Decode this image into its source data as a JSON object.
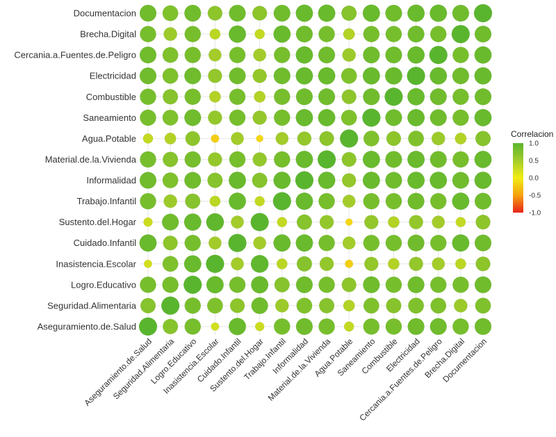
{
  "chart_data": {
    "type": "heatmap",
    "subtype": "correlation-circle-matrix",
    "variables": [
      "Aseguramiento.de.Salud",
      "Seguridad.Alimentaria",
      "Logro.Educativo",
      "Inasistencia.Escolar",
      "Cuidado.Infantil",
      "Sustento.del.Hogar",
      "Trabajo.Infantil",
      "Informalidad",
      "Material.de.la.Vivienda",
      "Agua.Potable",
      "Saneamiento",
      "Combustible",
      "Electricidad",
      "Cercania.a.Fuentes.de.Peligro",
      "Brecha.Digital",
      "Documentacion"
    ],
    "matrix": [
      [
        1.0,
        0.7,
        0.8,
        0.2,
        0.9,
        0.25,
        0.8,
        0.85,
        0.8,
        0.3,
        0.8,
        0.8,
        0.85,
        0.85,
        0.8,
        0.85
      ],
      [
        0.7,
        1.0,
        0.8,
        0.75,
        0.65,
        0.85,
        0.55,
        0.75,
        0.7,
        0.4,
        0.75,
        0.7,
        0.75,
        0.75,
        0.55,
        0.75
      ],
      [
        0.8,
        0.8,
        1.0,
        0.9,
        0.8,
        0.9,
        0.7,
        0.85,
        0.8,
        0.65,
        0.85,
        0.8,
        0.85,
        0.8,
        0.8,
        0.85
      ],
      [
        0.2,
        0.75,
        0.9,
        1.0,
        0.5,
        0.95,
        0.35,
        0.7,
        0.6,
        -0.2,
        0.6,
        0.4,
        0.6,
        0.5,
        0.35,
        0.65
      ],
      [
        0.9,
        0.65,
        0.8,
        0.5,
        1.0,
        0.5,
        0.9,
        0.9,
        0.8,
        0.5,
        0.8,
        0.8,
        0.85,
        0.8,
        0.9,
        0.85
      ],
      [
        0.25,
        0.85,
        0.9,
        0.95,
        0.5,
        1.0,
        0.3,
        0.7,
        0.6,
        -0.15,
        0.6,
        0.4,
        0.6,
        0.5,
        0.3,
        0.65
      ],
      [
        0.8,
        0.55,
        0.7,
        0.35,
        0.9,
        0.3,
        1.0,
        0.9,
        0.8,
        0.5,
        0.8,
        0.8,
        0.85,
        0.8,
        0.9,
        0.85
      ],
      [
        0.85,
        0.75,
        0.85,
        0.7,
        0.9,
        0.7,
        0.9,
        1.0,
        0.9,
        0.6,
        0.9,
        0.85,
        0.9,
        0.9,
        0.85,
        0.9
      ],
      [
        0.8,
        0.7,
        0.8,
        0.6,
        0.8,
        0.6,
        0.8,
        0.9,
        1.0,
        0.65,
        0.9,
        0.85,
        0.9,
        0.85,
        0.8,
        0.9
      ],
      [
        0.3,
        0.4,
        0.65,
        -0.2,
        0.5,
        -0.15,
        0.5,
        0.6,
        0.65,
        1.0,
        0.75,
        0.65,
        0.75,
        0.55,
        0.4,
        0.7
      ],
      [
        0.8,
        0.75,
        0.85,
        0.6,
        0.8,
        0.6,
        0.8,
        0.9,
        0.9,
        0.75,
        1.0,
        0.85,
        0.9,
        0.85,
        0.8,
        0.9
      ],
      [
        0.8,
        0.7,
        0.8,
        0.4,
        0.8,
        0.4,
        0.8,
        0.85,
        0.85,
        0.65,
        0.85,
        1.0,
        0.9,
        0.85,
        0.8,
        0.85
      ],
      [
        0.85,
        0.75,
        0.85,
        0.6,
        0.85,
        0.6,
        0.85,
        0.9,
        0.9,
        0.75,
        0.9,
        0.9,
        1.0,
        0.9,
        0.85,
        0.9
      ],
      [
        0.85,
        0.75,
        0.8,
        0.5,
        0.8,
        0.5,
        0.8,
        0.9,
        0.85,
        0.55,
        0.85,
        0.85,
        0.9,
        1.0,
        0.8,
        0.9
      ],
      [
        0.8,
        0.55,
        0.8,
        0.35,
        0.9,
        0.3,
        0.9,
        0.85,
        0.8,
        0.4,
        0.8,
        0.8,
        0.85,
        0.8,
        1.0,
        0.85
      ],
      [
        0.85,
        0.75,
        0.85,
        0.65,
        0.85,
        0.65,
        0.85,
        0.9,
        0.9,
        0.7,
        0.9,
        0.85,
        0.9,
        0.9,
        0.85,
        1.0
      ]
    ],
    "legend": {
      "title": "Correlacion",
      "ticks": [
        "1.0",
        "0.5",
        "0.0",
        "-0.5",
        "-1.0"
      ],
      "tick_values": [
        1.0,
        0.5,
        0.0,
        -0.5,
        -1.0
      ],
      "placement": "right",
      "range": [
        -1,
        1
      ]
    },
    "colors": {
      "low": "#e8231a",
      "mid_low": "#f5a20f",
      "mid": "#f2ec14",
      "high": "#5ab52e",
      "grid": "#e6e6e6",
      "text": "#333333"
    },
    "title": "",
    "xlabel": "",
    "ylabel": ""
  }
}
